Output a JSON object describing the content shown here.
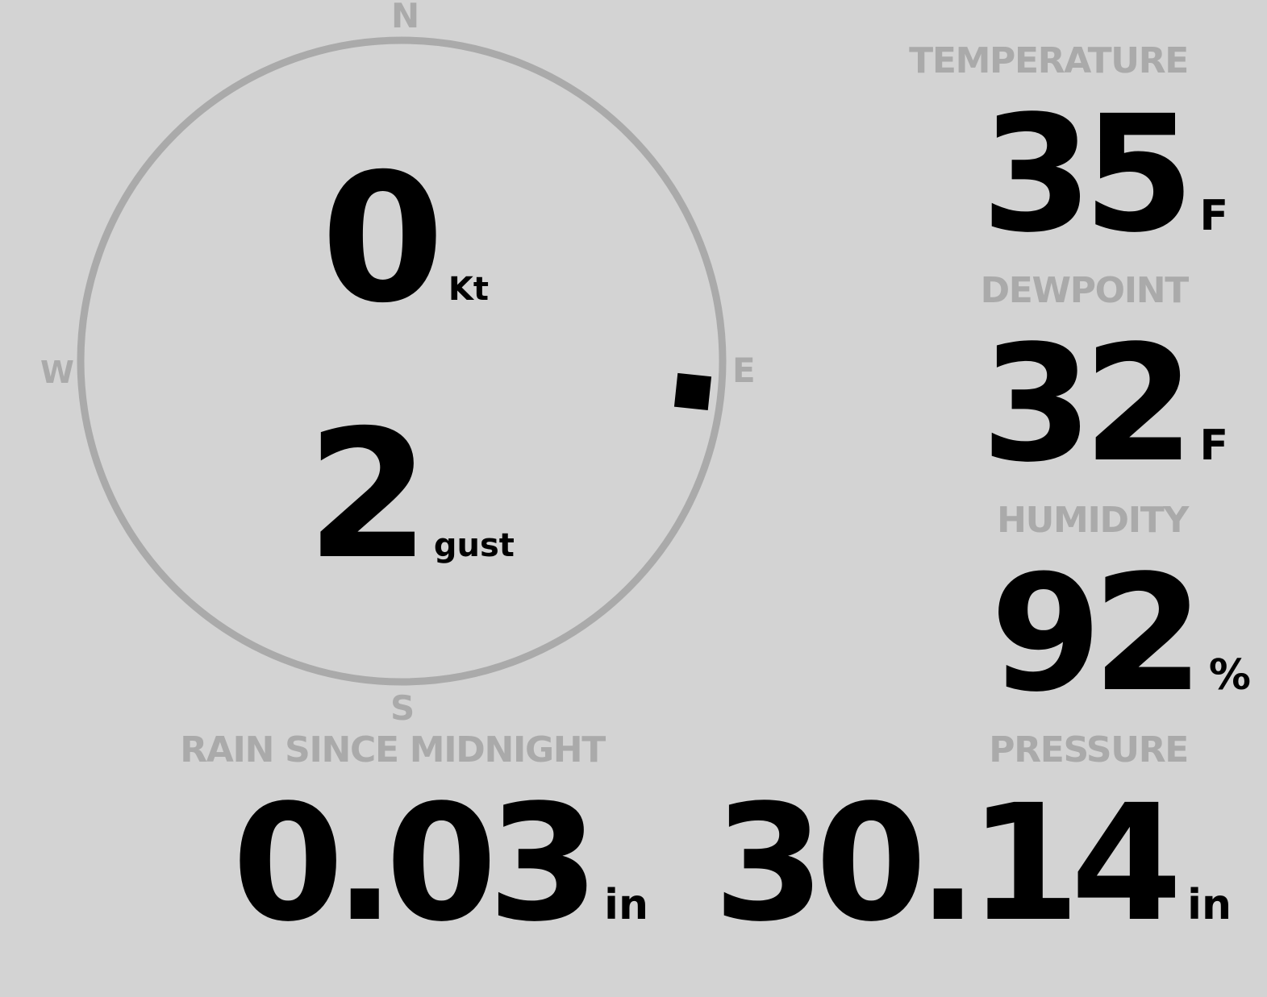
{
  "compass": {
    "north": "N",
    "south": "S",
    "east": "E",
    "west": "W",
    "wind_direction_deg": 96,
    "ring_color": "#aaaaaa",
    "marker_color": "#000000"
  },
  "wind": {
    "speed": "0",
    "speed_unit": "Kt",
    "gust": "2",
    "gust_unit": "gust"
  },
  "temperature": {
    "label": "TEMPERATURE",
    "value": "35",
    "unit": "F"
  },
  "dewpoint": {
    "label": "DEWPOINT",
    "value": "32",
    "unit": "F"
  },
  "humidity": {
    "label": "HUMIDITY",
    "value": "92",
    "unit": "%"
  },
  "pressure": {
    "label": "PRESSURE",
    "value": "30.14",
    "unit": "in"
  },
  "rain": {
    "label": "RAIN SINCE MIDNIGHT",
    "value": "0.03",
    "unit": "in"
  },
  "colors": {
    "background": "#d3d3d3",
    "label": "#aaaaaa",
    "value": "#000000"
  }
}
